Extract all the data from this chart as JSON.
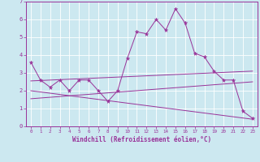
{
  "background_color": "#cce8f0",
  "line_color": "#993399",
  "grid_color": "#ffffff",
  "xlabel": "Windchill (Refroidissement éolien,°C)",
  "xlim": [
    -0.5,
    23.5
  ],
  "ylim": [
    0,
    7
  ],
  "yticks": [
    0,
    1,
    2,
    3,
    4,
    5,
    6,
    7
  ],
  "xticks": [
    0,
    1,
    2,
    3,
    4,
    5,
    6,
    7,
    8,
    9,
    10,
    11,
    12,
    13,
    14,
    15,
    16,
    17,
    18,
    19,
    20,
    21,
    22,
    23
  ],
  "series": [
    {
      "x": [
        0,
        1,
        2,
        3,
        4,
        5,
        6,
        7,
        8,
        9,
        10,
        11,
        12,
        13,
        14,
        15,
        16,
        17,
        18,
        19,
        20,
        21,
        22,
        23
      ],
      "y": [
        3.6,
        2.6,
        2.2,
        2.6,
        2.0,
        2.6,
        2.6,
        2.0,
        1.4,
        2.0,
        3.8,
        5.3,
        5.2,
        6.0,
        5.4,
        6.6,
        5.8,
        4.1,
        3.9,
        3.1,
        2.6,
        2.6,
        0.85,
        0.45
      ],
      "marker": "*",
      "markersize": 3.5
    },
    {
      "x": [
        0,
        23
      ],
      "y": [
        2.55,
        3.1
      ]
    },
    {
      "x": [
        0,
        23
      ],
      "y": [
        1.55,
        2.5
      ]
    },
    {
      "x": [
        0,
        23
      ],
      "y": [
        2.0,
        0.4
      ]
    }
  ],
  "ytick_fontsize": 5,
  "xtick_fontsize": 4.2,
  "xlabel_fontsize": 5.5
}
